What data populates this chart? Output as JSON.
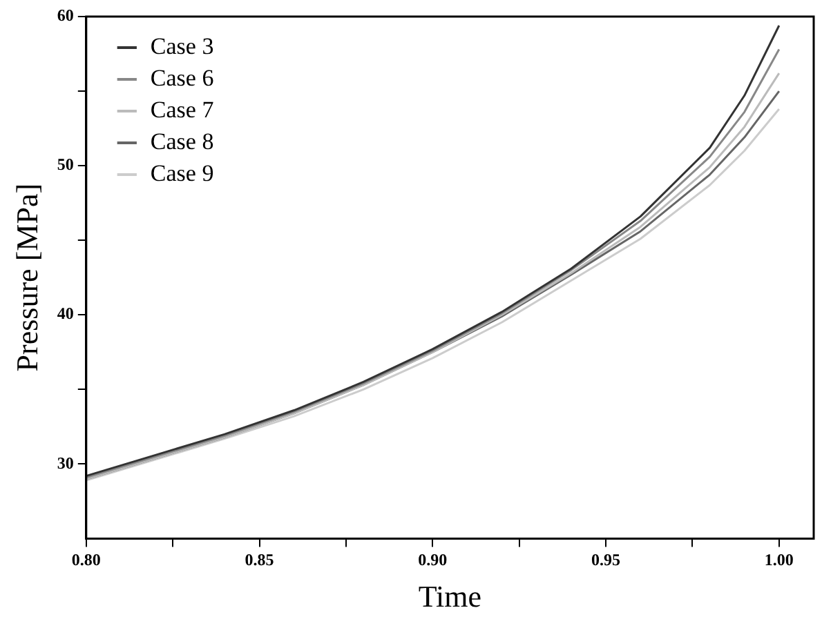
{
  "chart_data": {
    "type": "line",
    "xlabel": "Time",
    "ylabel": "Pressure [MPa]",
    "x": [
      0.8,
      0.82,
      0.84,
      0.86,
      0.88,
      0.9,
      0.92,
      0.94,
      0.96,
      0.98,
      0.99,
      1.0
    ],
    "series": [
      {
        "name": "Case 3",
        "color": "#333333",
        "values": [
          29.2,
          30.6,
          32.0,
          33.6,
          35.5,
          37.7,
          40.2,
          43.1,
          46.6,
          51.2,
          54.7,
          59.4
        ]
      },
      {
        "name": "Case 6",
        "color": "#888888",
        "values": [
          29.1,
          30.5,
          31.9,
          33.5,
          35.4,
          37.6,
          40.1,
          43.0,
          46.3,
          50.6,
          53.6,
          57.8
        ]
      },
      {
        "name": "Case 7",
        "color": "#bbbbbb",
        "values": [
          29.0,
          30.4,
          31.8,
          33.4,
          35.3,
          37.5,
          40.0,
          42.8,
          45.9,
          49.9,
          52.6,
          56.2
        ]
      },
      {
        "name": "Case 8",
        "color": "#666666",
        "values": [
          29.0,
          30.4,
          31.8,
          33.4,
          35.3,
          37.5,
          39.9,
          42.7,
          45.6,
          49.4,
          51.9,
          55.0
        ]
      },
      {
        "name": "Case 9",
        "color": "#cccccc",
        "values": [
          28.9,
          30.3,
          31.7,
          33.2,
          35.0,
          37.1,
          39.5,
          42.3,
          45.1,
          48.7,
          51.0,
          53.8
        ]
      }
    ],
    "xlim": [
      0.8,
      1.01
    ],
    "xticks": [
      {
        "value": 0.8,
        "label": "0.80"
      },
      {
        "value": 0.825,
        "label": null
      },
      {
        "value": 0.85,
        "label": "0.85"
      },
      {
        "value": 0.875,
        "label": null
      },
      {
        "value": 0.9,
        "label": "0.90"
      },
      {
        "value": 0.925,
        "label": null
      },
      {
        "value": 0.95,
        "label": "0.95"
      },
      {
        "value": 0.975,
        "label": null
      },
      {
        "value": 1.0,
        "label": "1.00"
      }
    ],
    "ylim": [
      25,
      60
    ],
    "yticks": [
      30,
      {
        "value": 35,
        "label": null
      },
      40,
      {
        "value": 45,
        "label": null
      },
      50,
      {
        "value": 55,
        "label": null
      },
      60
    ],
    "grid": false,
    "legend": "top left",
    "marker": "none",
    "line_style": "solid"
  }
}
